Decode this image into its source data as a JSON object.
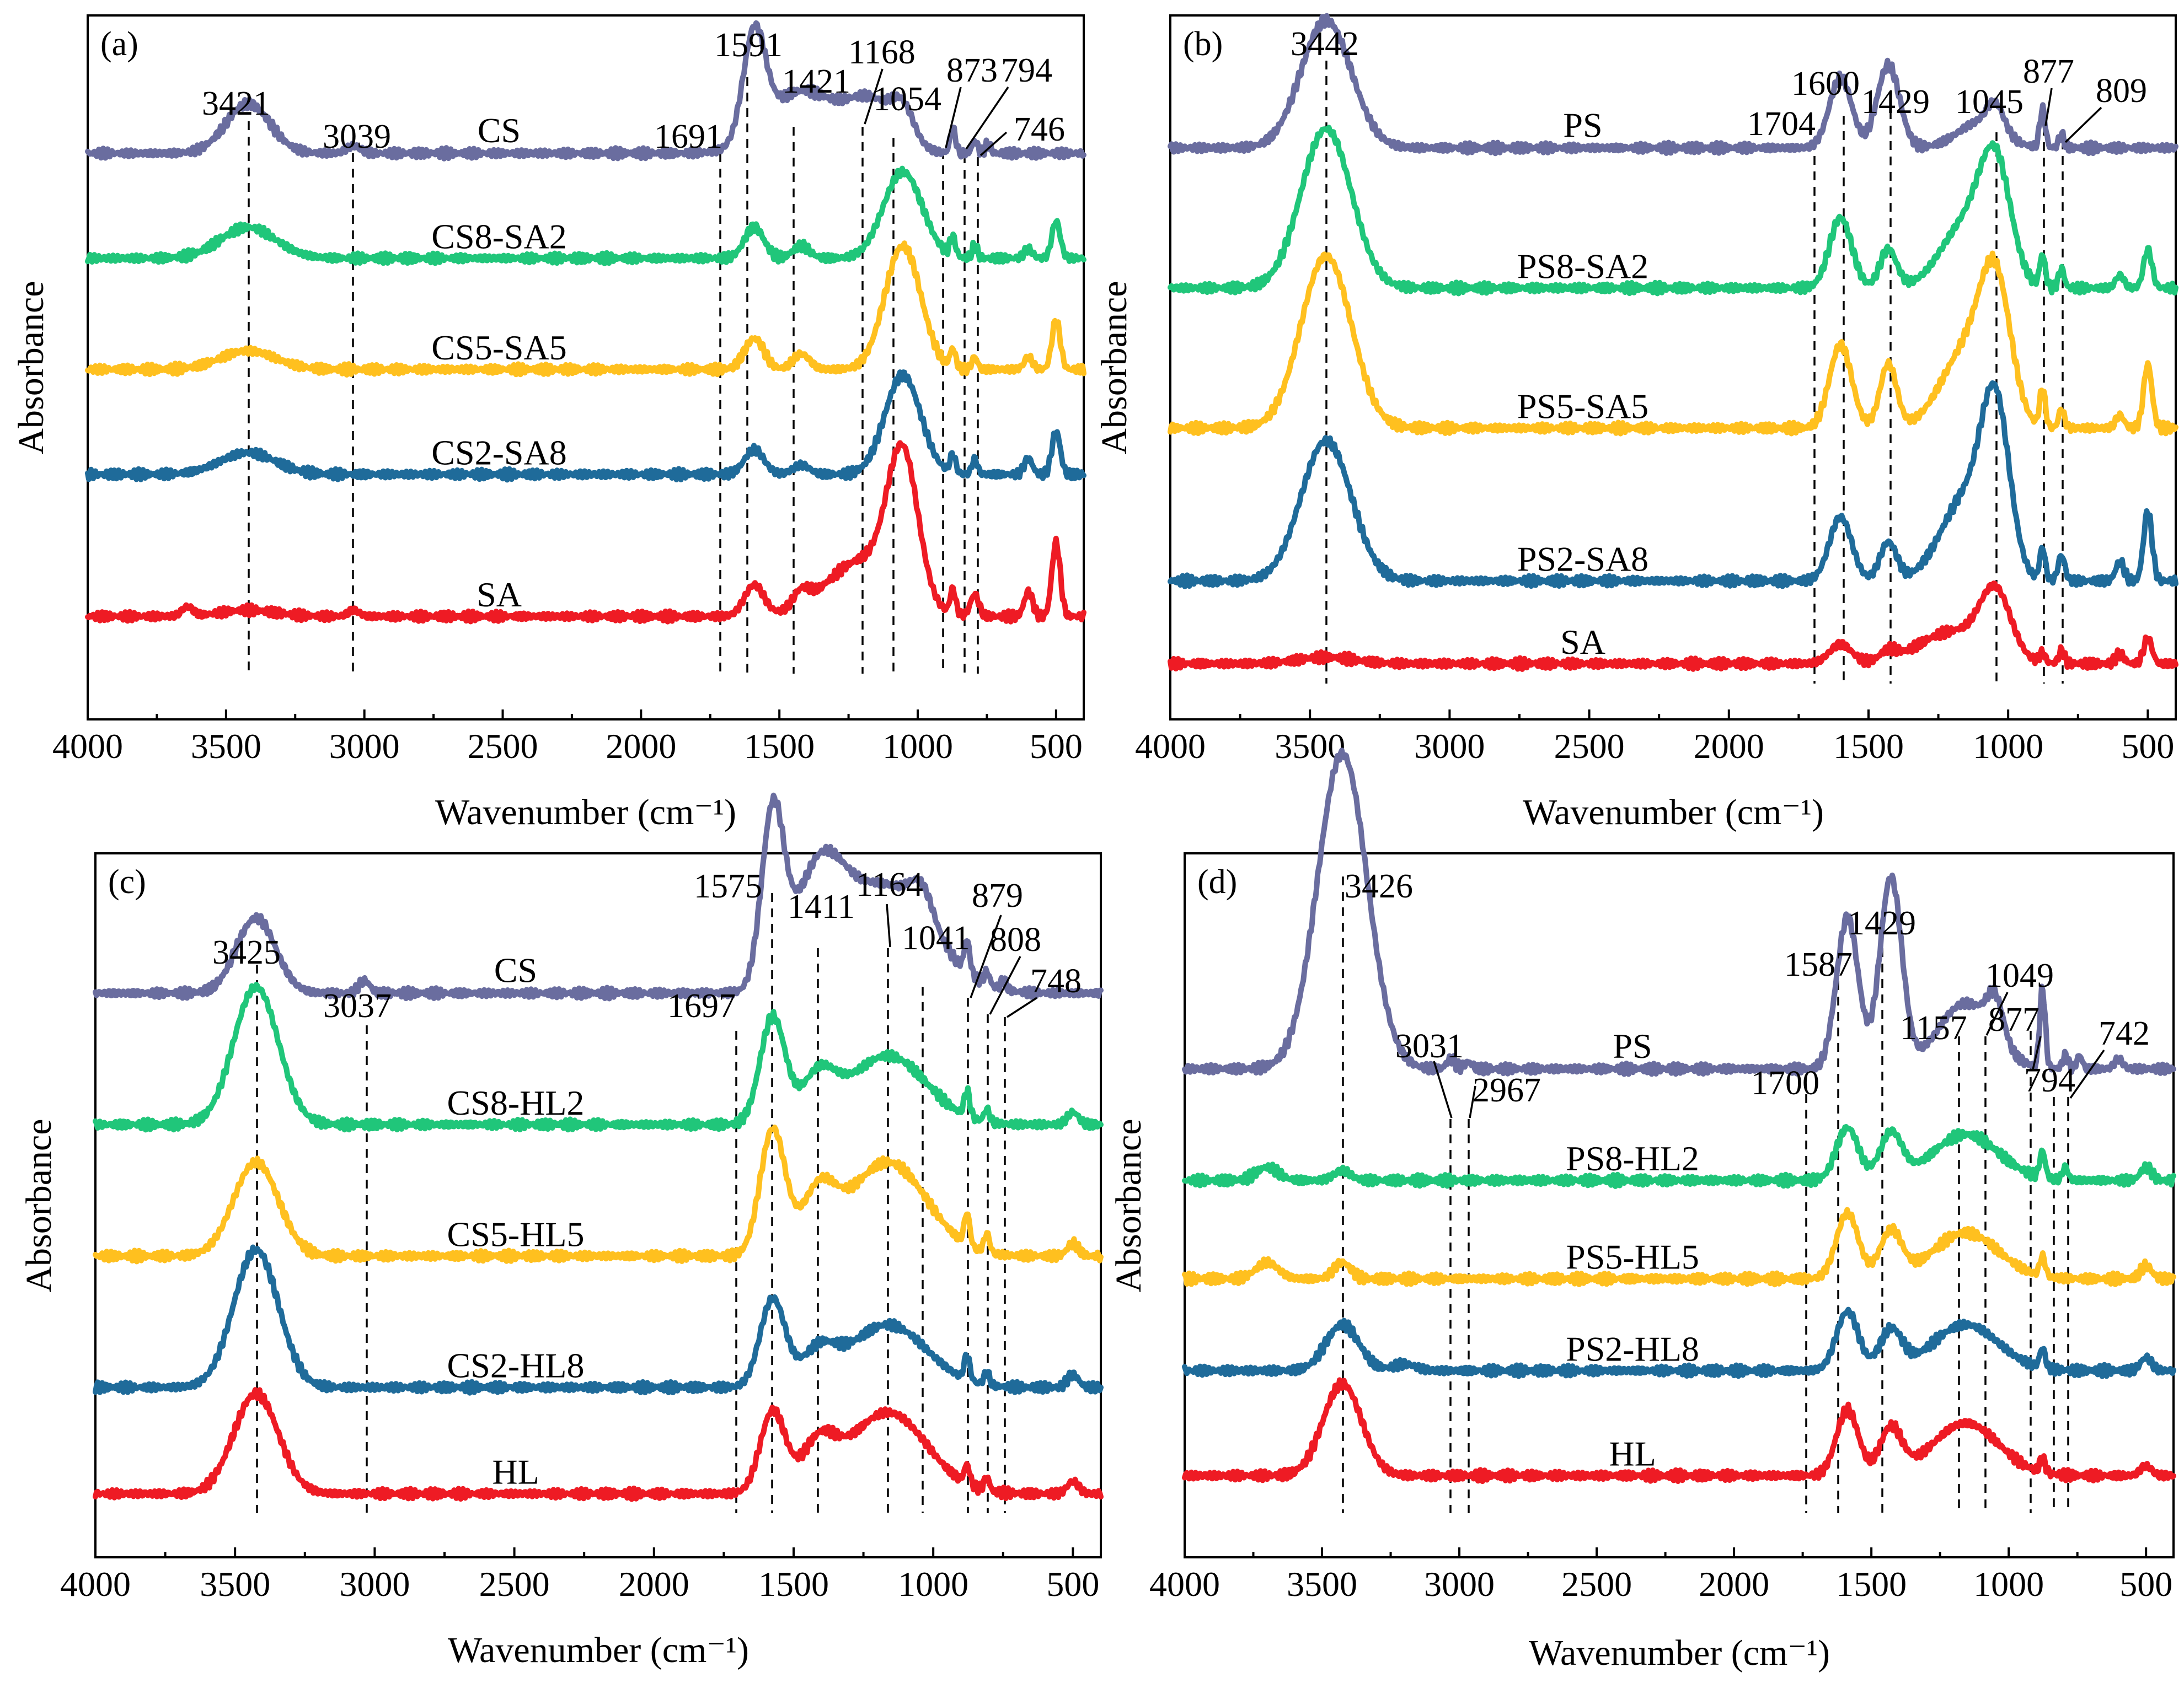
{
  "figure": {
    "x_axis_label": "Wavenumber (cm⁻¹)",
    "y_axis_label": "Absorbance"
  },
  "colors": {
    "purple": "#6a6d9f",
    "green": "#20c67a",
    "yellow": "#ffc01f",
    "blue": "#1f6b9a",
    "red": "#ee1b24"
  },
  "chart_data": [
    {
      "type": "line",
      "panel": "(a)",
      "xlabel": "Wavenumber (cm⁻¹)",
      "ylabel": "Absorbance",
      "xlim": [
        4000,
        400
      ],
      "xticks": [
        4000,
        3500,
        3000,
        2500,
        2000,
        1500,
        1000,
        500
      ],
      "series": [
        {
          "name": "CS",
          "color": "purple",
          "baseline": 0.85,
          "peaks": [
            [
              3421,
              0.08,
              80
            ],
            [
              3039,
              0.012,
              25
            ],
            [
              1591,
              0.17,
              40
            ],
            [
              1421,
              0.1,
              120
            ],
            [
              1168,
              0.08,
              90
            ],
            [
              1054,
              0.05,
              40
            ],
            [
              873,
              0.04,
              10
            ],
            [
              794,
              0.02,
              10
            ],
            [
              746,
              0.015,
              10
            ]
          ]
        },
        {
          "name": "CS8-SA2",
          "color": "green",
          "baseline": 0.68,
          "peaks": [
            [
              3421,
              0.05,
              100
            ],
            [
              1591,
              0.05,
              35
            ],
            [
              1421,
              0.02,
              30
            ],
            [
              1054,
              0.14,
              70
            ],
            [
              873,
              0.03,
              10
            ],
            [
              794,
              0.02,
              10
            ],
            [
              600,
              0.015,
              15
            ],
            [
              500,
              0.06,
              15
            ]
          ]
        },
        {
          "name": "CS5-SA5",
          "color": "yellow",
          "baseline": 0.5,
          "peaks": [
            [
              3421,
              0.03,
              100
            ],
            [
              1591,
              0.05,
              35
            ],
            [
              1421,
              0.025,
              30
            ],
            [
              1054,
              0.2,
              65
            ],
            [
              873,
              0.03,
              10
            ],
            [
              794,
              0.02,
              10
            ],
            [
              600,
              0.02,
              15
            ],
            [
              500,
              0.08,
              15
            ]
          ]
        },
        {
          "name": "CS2-SA8",
          "color": "blue",
          "baseline": 0.33,
          "peaks": [
            [
              3421,
              0.035,
              100
            ],
            [
              1591,
              0.04,
              35
            ],
            [
              1421,
              0.015,
              30
            ],
            [
              1054,
              0.16,
              65
            ],
            [
              873,
              0.03,
              10
            ],
            [
              794,
              0.025,
              10
            ],
            [
              600,
              0.025,
              15
            ],
            [
              500,
              0.07,
              15
            ]
          ]
        },
        {
          "name": "SA",
          "color": "red",
          "baseline": 0.1,
          "peaks": [
            [
              3640,
              0.015,
              20
            ],
            [
              3421,
              0.01,
              100
            ],
            [
              3039,
              0.01,
              20
            ],
            [
              1591,
              0.05,
              35
            ],
            [
              1421,
              0.025,
              30
            ],
            [
              1200,
              0.09,
              130
            ],
            [
              1054,
              0.23,
              55
            ],
            [
              873,
              0.04,
              10
            ],
            [
              794,
              0.035,
              15
            ],
            [
              600,
              0.04,
              15
            ],
            [
              500,
              0.12,
              15
            ]
          ]
        }
      ],
      "peak_labels": [
        "3421",
        "3039",
        "1691",
        "1591",
        "1421",
        "1168",
        "1054",
        "873",
        "794",
        "746"
      ]
    },
    {
      "type": "line",
      "panel": "(b)",
      "xlabel": "Wavenumber (cm⁻¹)",
      "ylabel": "Absorbance",
      "xlim": [
        4000,
        400
      ],
      "xticks": [
        4000,
        3500,
        3000,
        2500,
        2000,
        1500,
        1000,
        500
      ],
      "series": [
        {
          "name": "PS",
          "color": "purple",
          "baseline": 0.85,
          "peaks": [
            [
              3442,
              0.2,
              90
            ],
            [
              1600,
              0.11,
              40
            ],
            [
              1429,
              0.13,
              40
            ],
            [
              1100,
              0.04,
              80
            ],
            [
              1045,
              0.04,
              30
            ],
            [
              877,
              0.06,
              10
            ],
            [
              809,
              0.02,
              10
            ]
          ]
        },
        {
          "name": "PS8-SA2",
          "color": "green",
          "baseline": 0.63,
          "peaks": [
            [
              3442,
              0.25,
              90
            ],
            [
              1600,
              0.11,
              40
            ],
            [
              1429,
              0.06,
              30
            ],
            [
              1150,
              0.1,
              90
            ],
            [
              1045,
              0.17,
              55
            ],
            [
              877,
              0.05,
              10
            ],
            [
              809,
              0.03,
              10
            ],
            [
              600,
              0.02,
              15
            ],
            [
              500,
              0.06,
              15
            ]
          ]
        },
        {
          "name": "PS5-SA5",
          "color": "yellow",
          "baseline": 0.41,
          "peaks": [
            [
              3442,
              0.27,
              90
            ],
            [
              1600,
              0.13,
              40
            ],
            [
              1429,
              0.1,
              30
            ],
            [
              1150,
              0.12,
              90
            ],
            [
              1045,
              0.2,
              55
            ],
            [
              877,
              0.06,
              10
            ],
            [
              809,
              0.03,
              10
            ],
            [
              600,
              0.02,
              15
            ],
            [
              500,
              0.1,
              15
            ]
          ]
        },
        {
          "name": "PS2-SA8",
          "color": "blue",
          "baseline": 0.17,
          "peaks": [
            [
              3442,
              0.22,
              90
            ],
            [
              1600,
              0.1,
              40
            ],
            [
              1429,
              0.06,
              30
            ],
            [
              1150,
              0.13,
              90
            ],
            [
              1045,
              0.24,
              50
            ],
            [
              877,
              0.05,
              10
            ],
            [
              809,
              0.04,
              12
            ],
            [
              600,
              0.03,
              15
            ],
            [
              500,
              0.11,
              15
            ]
          ]
        },
        {
          "name": "SA",
          "color": "red",
          "baseline": 0.04,
          "peaks": [
            [
              3442,
              0.01,
              100
            ],
            [
              1600,
              0.03,
              40
            ],
            [
              1429,
              0.015,
              30
            ],
            [
              1200,
              0.05,
              120
            ],
            [
              1045,
              0.1,
              55
            ],
            [
              877,
              0.015,
              10
            ],
            [
              809,
              0.02,
              10
            ],
            [
              600,
              0.015,
              15
            ],
            [
              500,
              0.04,
              15
            ]
          ]
        }
      ],
      "peak_labels": [
        "3442",
        "1704",
        "1600",
        "1429",
        "1045",
        "877",
        "809"
      ]
    },
    {
      "type": "line",
      "panel": "(c)",
      "xlabel": "Wavenumber (cm⁻¹)",
      "ylabel": "Absorbance",
      "xlim": [
        4000,
        400
      ],
      "xticks": [
        4000,
        3500,
        3000,
        2500,
        2000,
        1500,
        1000,
        500
      ],
      "series": [
        {
          "name": "CS",
          "color": "purple",
          "baseline": 0.84,
          "peaks": [
            [
              3425,
              0.12,
              70
            ],
            [
              3037,
              0.02,
              20
            ],
            [
              1575,
              0.27,
              40
            ],
            [
              1411,
              0.17,
              90
            ],
            [
              1164,
              0.17,
              160
            ],
            [
              1041,
              0.05,
              40
            ],
            [
              879,
              0.05,
              10
            ],
            [
              808,
              0.02,
              10
            ],
            [
              748,
              0.015,
              10
            ]
          ]
        },
        {
          "name": "CS8-HL2",
          "color": "green",
          "baseline": 0.63,
          "peaks": [
            [
              3425,
              0.22,
              80
            ],
            [
              1575,
              0.17,
              45
            ],
            [
              1411,
              0.07,
              60
            ],
            [
              1164,
              0.11,
              140
            ],
            [
              879,
              0.04,
              10
            ],
            [
              808,
              0.02,
              10
            ],
            [
              500,
              0.02,
              20
            ]
          ]
        },
        {
          "name": "CS5-HL5",
          "color": "yellow",
          "baseline": 0.42,
          "peaks": [
            [
              3425,
              0.15,
              80
            ],
            [
              1575,
              0.2,
              45
            ],
            [
              1411,
              0.09,
              60
            ],
            [
              1164,
              0.15,
              140
            ],
            [
              879,
              0.05,
              10
            ],
            [
              808,
              0.03,
              10
            ],
            [
              500,
              0.02,
              20
            ]
          ]
        },
        {
          "name": "CS2-HL8",
          "color": "blue",
          "baseline": 0.21,
          "peaks": [
            [
              3425,
              0.22,
              80
            ],
            [
              1575,
              0.14,
              45
            ],
            [
              1411,
              0.05,
              60
            ],
            [
              1164,
              0.1,
              140
            ],
            [
              879,
              0.04,
              10
            ],
            [
              808,
              0.02,
              10
            ],
            [
              500,
              0.02,
              20
            ]
          ]
        },
        {
          "name": "HL",
          "color": "red",
          "baseline": 0.04,
          "peaks": [
            [
              3425,
              0.16,
              80
            ],
            [
              1575,
              0.13,
              45
            ],
            [
              1411,
              0.07,
              60
            ],
            [
              1164,
              0.13,
              140
            ],
            [
              879,
              0.03,
              10
            ],
            [
              808,
              0.02,
              10
            ],
            [
              500,
              0.02,
              20
            ]
          ]
        }
      ],
      "peak_labels": [
        "3425",
        "3037",
        "1697",
        "1575",
        "1411",
        "1164",
        "1041",
        "879",
        "808",
        "748"
      ]
    },
    {
      "type": "line",
      "panel": "(d)",
      "xlabel": "Wavenumber (cm⁻¹)",
      "ylabel": "Absorbance",
      "xlim": [
        4000,
        400
      ],
      "xticks": [
        4000,
        3500,
        3000,
        2500,
        2000,
        1500,
        1000,
        500
      ],
      "series": [
        {
          "name": "PS",
          "color": "purple",
          "baseline": 0.69,
          "peaks": [
            [
              3426,
              0.48,
              90
            ],
            [
              3031,
              0.015,
              15
            ],
            [
              2967,
              0.01,
              15
            ],
            [
              1587,
              0.23,
              40
            ],
            [
              1429,
              0.29,
              40
            ],
            [
              1157,
              0.1,
              100
            ],
            [
              1049,
              0.06,
              30
            ],
            [
              877,
              0.12,
              10
            ],
            [
              794,
              0.02,
              10
            ],
            [
              742,
              0.02,
              10
            ],
            [
              600,
              0.015,
              15
            ]
          ]
        },
        {
          "name": "PS8-HL2",
          "color": "green",
          "baseline": 0.52,
          "peaks": [
            [
              3700,
              0.02,
              40
            ],
            [
              3426,
              0.015,
              30
            ],
            [
              1587,
              0.08,
              40
            ],
            [
              1429,
              0.07,
              40
            ],
            [
              1157,
              0.07,
              120
            ],
            [
              877,
              0.04,
              10
            ],
            [
              794,
              0.02,
              10
            ],
            [
              500,
              0.02,
              20
            ]
          ]
        },
        {
          "name": "PS5-HL5",
          "color": "yellow",
          "baseline": 0.37,
          "peaks": [
            [
              3700,
              0.025,
              40
            ],
            [
              3426,
              0.025,
              30
            ],
            [
              1587,
              0.1,
              40
            ],
            [
              1429,
              0.07,
              40
            ],
            [
              1157,
              0.07,
              120
            ],
            [
              877,
              0.03,
              10
            ],
            [
              500,
              0.02,
              20
            ]
          ]
        },
        {
          "name": "PS2-HL8",
          "color": "blue",
          "baseline": 0.23,
          "peaks": [
            [
              3426,
              0.07,
              60
            ],
            [
              3200,
              0.01,
              40
            ],
            [
              1587,
              0.09,
              40
            ],
            [
              1429,
              0.06,
              40
            ],
            [
              1157,
              0.07,
              120
            ],
            [
              877,
              0.03,
              10
            ],
            [
              500,
              0.02,
              20
            ]
          ]
        },
        {
          "name": "HL",
          "color": "red",
          "baseline": 0.07,
          "peaks": [
            [
              3426,
              0.14,
              70
            ],
            [
              1587,
              0.1,
              40
            ],
            [
              1429,
              0.07,
              40
            ],
            [
              1157,
              0.08,
              120
            ],
            [
              877,
              0.02,
              10
            ],
            [
              500,
              0.015,
              20
            ]
          ]
        }
      ],
      "peak_labels": [
        "3426",
        "3031",
        "2967",
        "1700",
        "1587",
        "1429",
        "1157",
        "1049",
        "877",
        "794",
        "742"
      ]
    }
  ]
}
